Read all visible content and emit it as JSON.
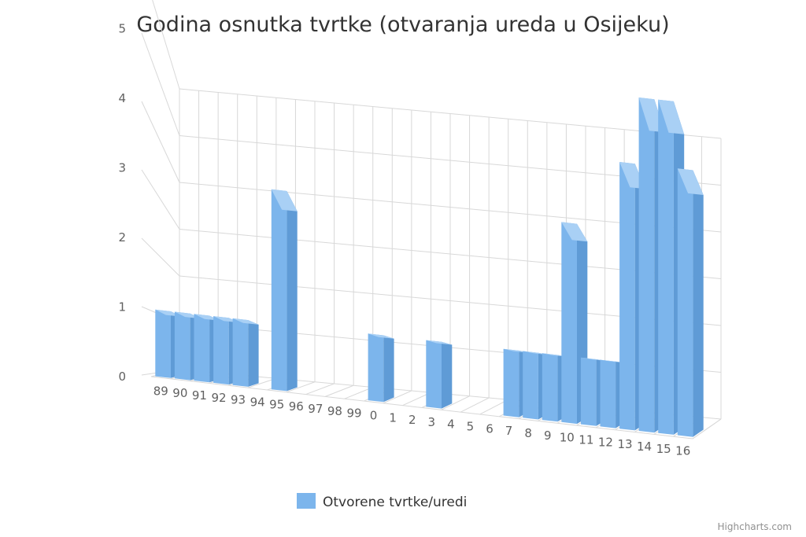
{
  "chart_data": {
    "type": "bar",
    "title": "Godina osnutka tvrtke (otvaranja ureda u Osijeku)",
    "categories": [
      "89",
      "90",
      "91",
      "92",
      "93",
      "94",
      "95",
      "96",
      "97",
      "98",
      "99",
      "0",
      "1",
      "2",
      "3",
      "4",
      "5",
      "6",
      "7",
      "8",
      "9",
      "10",
      "11",
      "12",
      "13",
      "14",
      "15",
      "16"
    ],
    "series": [
      {
        "name": "Otvorene tvrtke/uredi",
        "values": [
          1,
          1,
          1,
          1,
          1,
          0,
          3,
          0,
          0,
          0,
          0,
          1,
          0,
          0,
          1,
          0,
          0,
          0,
          1,
          1,
          1,
          3,
          1,
          1,
          4,
          5,
          5,
          4
        ],
        "color": "#7cb5ec"
      }
    ],
    "ylim": [
      0,
      6
    ],
    "yticks": [
      "0",
      "1",
      "2",
      "3",
      "4",
      "5",
      "6"
    ],
    "grid": true,
    "legend": "bottom-center",
    "rendering": "3d-column"
  },
  "credits": "Highcharts.com"
}
